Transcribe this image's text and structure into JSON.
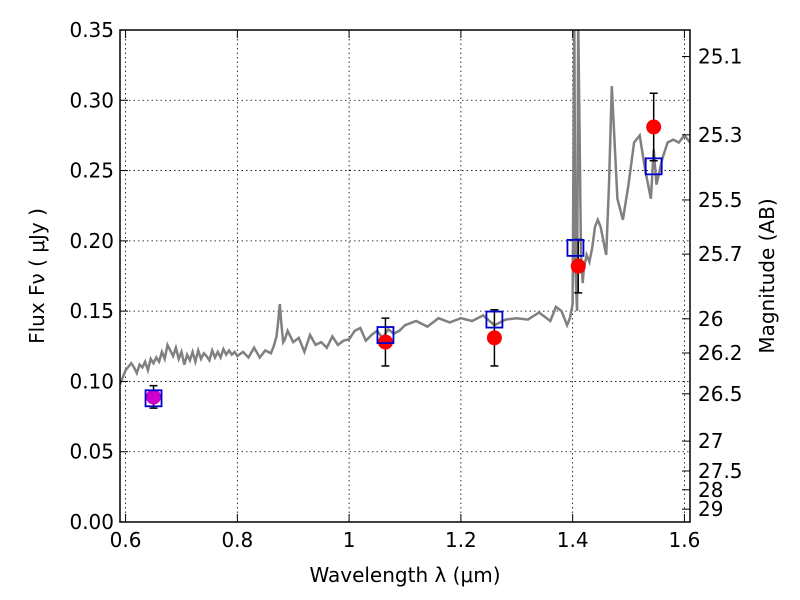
{
  "chart_data": {
    "type": "scatter",
    "xlabel": "Wavelength  λ (μm)",
    "ylabel": "Flux  Fν  ( μJy )",
    "y2label": "Magnitude (AB)",
    "xlim": [
      0.59,
      1.61
    ],
    "ylim": [
      0.0,
      0.35
    ],
    "grid": true,
    "x_ticks": [
      "0.6",
      "0.8",
      "1",
      "1.2",
      "1.4",
      "1.6"
    ],
    "x_tick_values": [
      0.6,
      0.8,
      1.0,
      1.2,
      1.4,
      1.6
    ],
    "y_ticks": [
      "0.00",
      "0.05",
      "0.10",
      "0.15",
      "0.20",
      "0.25",
      "0.30",
      "0.35"
    ],
    "y_tick_values": [
      0.0,
      0.05,
      0.1,
      0.15,
      0.2,
      0.25,
      0.3,
      0.35
    ],
    "y2_ticks": [
      "25.1",
      "25.3",
      "25.5",
      "25.7",
      "26",
      "26.2",
      "26.5",
      "27",
      "27.5",
      "28",
      "29"
    ],
    "y2_tick_values": [
      25.1,
      25.3,
      25.5,
      25.7,
      26.0,
      26.2,
      26.5,
      27.0,
      27.5,
      28.0,
      29.0
    ],
    "colors": {
      "model": "#808080",
      "observed": "#ff0000",
      "model_flux": "#0000cc",
      "magenta_point": "#cc00cc"
    },
    "model_spectrum": {
      "x": [
        0.59,
        0.6,
        0.61,
        0.615,
        0.62,
        0.625,
        0.63,
        0.635,
        0.64,
        0.645,
        0.65,
        0.655,
        0.66,
        0.665,
        0.67,
        0.675,
        0.68,
        0.685,
        0.69,
        0.695,
        0.7,
        0.705,
        0.71,
        0.715,
        0.72,
        0.725,
        0.73,
        0.735,
        0.74,
        0.745,
        0.75,
        0.755,
        0.76,
        0.765,
        0.77,
        0.775,
        0.78,
        0.785,
        0.79,
        0.795,
        0.8,
        0.81,
        0.82,
        0.83,
        0.84,
        0.85,
        0.86,
        0.865,
        0.87,
        0.873,
        0.876,
        0.879,
        0.882,
        0.885,
        0.89,
        0.9,
        0.91,
        0.92,
        0.93,
        0.94,
        0.95,
        0.96,
        0.97,
        0.98,
        0.99,
        1.0,
        1.01,
        1.02,
        1.03,
        1.04,
        1.05,
        1.06,
        1.07,
        1.08,
        1.09,
        1.1,
        1.12,
        1.14,
        1.16,
        1.18,
        1.2,
        1.22,
        1.24,
        1.26,
        1.28,
        1.3,
        1.32,
        1.34,
        1.36,
        1.37,
        1.38,
        1.39,
        1.395,
        1.4,
        1.403,
        1.405,
        1.408,
        1.41,
        1.415,
        1.418,
        1.42,
        1.425,
        1.43,
        1.435,
        1.44,
        1.445,
        1.45,
        1.455,
        1.46,
        1.465,
        1.47,
        1.48,
        1.49,
        1.5,
        1.51,
        1.52,
        1.53,
        1.54,
        1.545,
        1.55,
        1.56,
        1.57,
        1.58,
        1.59,
        1.6,
        1.61
      ],
      "y": [
        0.098,
        0.108,
        0.113,
        0.11,
        0.106,
        0.112,
        0.11,
        0.114,
        0.108,
        0.116,
        0.113,
        0.117,
        0.114,
        0.121,
        0.116,
        0.126,
        0.122,
        0.118,
        0.124,
        0.116,
        0.121,
        0.112,
        0.119,
        0.115,
        0.121,
        0.114,
        0.122,
        0.116,
        0.12,
        0.118,
        0.115,
        0.122,
        0.117,
        0.121,
        0.117,
        0.123,
        0.119,
        0.122,
        0.119,
        0.121,
        0.118,
        0.121,
        0.117,
        0.124,
        0.117,
        0.122,
        0.12,
        0.125,
        0.132,
        0.142,
        0.155,
        0.14,
        0.128,
        0.13,
        0.136,
        0.128,
        0.131,
        0.121,
        0.133,
        0.126,
        0.128,
        0.124,
        0.132,
        0.126,
        0.129,
        0.13,
        0.136,
        0.138,
        0.129,
        0.133,
        0.136,
        0.131,
        0.137,
        0.134,
        0.136,
        0.14,
        0.143,
        0.139,
        0.145,
        0.142,
        0.145,
        0.143,
        0.147,
        0.14,
        0.144,
        0.145,
        0.144,
        0.149,
        0.143,
        0.153,
        0.15,
        0.14,
        0.145,
        0.155,
        0.36,
        0.18,
        0.15,
        0.36,
        0.19,
        0.17,
        0.18,
        0.19,
        0.185,
        0.195,
        0.21,
        0.215,
        0.21,
        0.2,
        0.19,
        0.24,
        0.31,
        0.23,
        0.215,
        0.24,
        0.27,
        0.275,
        0.25,
        0.23,
        0.265,
        0.24,
        0.258,
        0.27,
        0.272,
        0.27,
        0.275,
        0.27
      ]
    },
    "observed": {
      "x": [
        0.65,
        1.065,
        1.26,
        1.41,
        1.545
      ],
      "y": [
        0.089,
        0.128,
        0.131,
        0.182,
        0.281
      ],
      "yerr": [
        0.008,
        0.017,
        0.02,
        0.019,
        0.024
      ]
    },
    "model_flux": {
      "x": [
        0.65,
        1.065,
        1.26,
        1.405,
        1.545
      ],
      "y": [
        0.088,
        0.133,
        0.144,
        0.195,
        0.253
      ]
    },
    "magenta_point": {
      "x": [
        0.65
      ],
      "y": [
        0.089
      ]
    }
  }
}
